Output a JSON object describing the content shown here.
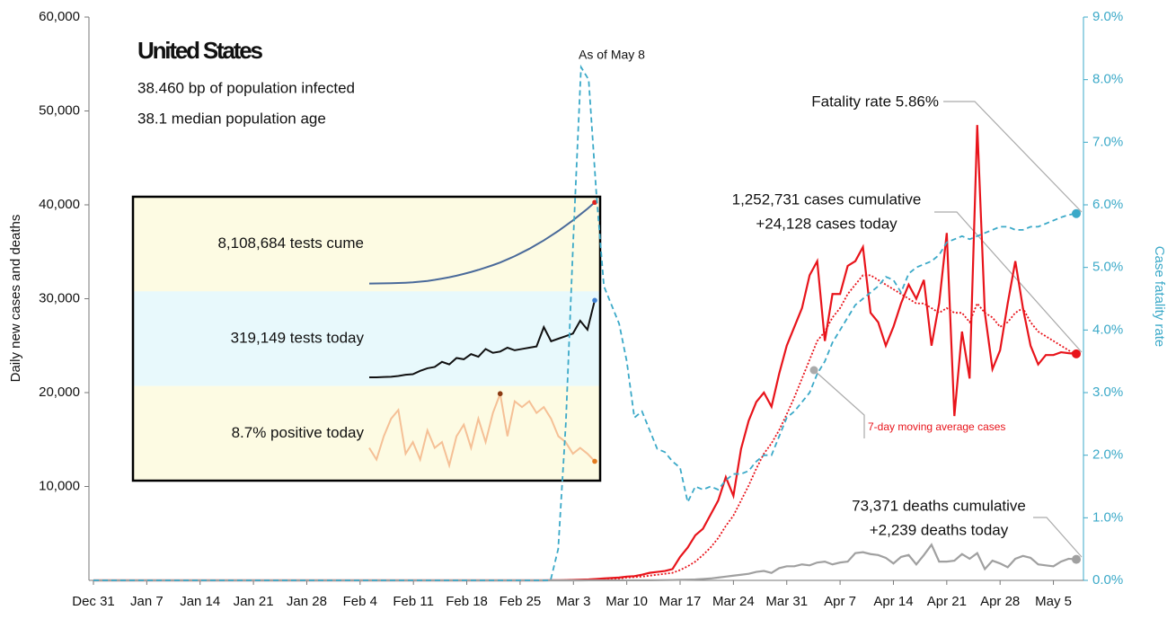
{
  "chart_data": {
    "type": "line",
    "title": "United States",
    "subtitle": [
      "38.460 bp of population infected",
      "38.1 median population age"
    ],
    "y_label": "Daily new cases and deaths",
    "y2_label": "Case fatality rate",
    "annotations": {
      "as_of": "As of May 8",
      "fatality": "Fatality rate 5.86%",
      "cases_cum": "1,252,731 cases cumulative",
      "cases_today": "+24,128 cases today",
      "avg": "7-day moving average cases",
      "deaths_cum": "73,371 deaths cumulative",
      "deaths_today": "+2,239 deaths today"
    },
    "categories": [
      "Dec 31",
      null,
      null,
      null,
      null,
      null,
      null,
      "Jan 7",
      null,
      null,
      null,
      null,
      null,
      null,
      "Jan 14",
      null,
      null,
      null,
      null,
      null,
      null,
      "Jan 21",
      null,
      null,
      null,
      null,
      null,
      null,
      "Jan 28",
      null,
      null,
      null,
      null,
      null,
      null,
      "Feb 4",
      null,
      null,
      null,
      null,
      null,
      null,
      "Feb 11",
      null,
      null,
      null,
      null,
      null,
      null,
      "Feb 18",
      null,
      null,
      null,
      null,
      null,
      null,
      "Feb 25",
      null,
      null,
      null,
      null,
      null,
      null,
      "Mar 3",
      null,
      null,
      null,
      null,
      null,
      null,
      "Mar 10",
      null,
      null,
      null,
      null,
      null,
      null,
      "Mar 17",
      null,
      null,
      null,
      null,
      null,
      null,
      "Mar 24",
      null,
      null,
      null,
      null,
      null,
      null,
      "Mar 31",
      null,
      null,
      null,
      null,
      null,
      null,
      "Apr 7",
      null,
      null,
      null,
      null,
      null,
      null,
      "Apr 14",
      null,
      null,
      null,
      null,
      null,
      null,
      "Apr 21",
      null,
      null,
      null,
      null,
      null,
      null,
      "Apr 28",
      null,
      null,
      null,
      null,
      null,
      null,
      "May 5",
      null,
      null,
      null
    ],
    "ylim": [
      0,
      60000
    ],
    "yticks": [
      {
        "value": 10000,
        "label": "10,000"
      },
      {
        "value": 20000,
        "label": "20,000"
      },
      {
        "value": 30000,
        "label": "30,000"
      },
      {
        "value": 40000,
        "label": "40,000"
      },
      {
        "value": 50000,
        "label": "50,000"
      },
      {
        "value": 60000,
        "label": "60,000"
      }
    ],
    "y2lim": [
      0,
      9
    ],
    "y2ticks": [
      {
        "value": 0,
        "label": "0.0%"
      },
      {
        "value": 1,
        "label": "1.0%"
      },
      {
        "value": 2,
        "label": "2.0%"
      },
      {
        "value": 3,
        "label": "3.0%"
      },
      {
        "value": 4,
        "label": "4.0%"
      },
      {
        "value": 5,
        "label": "5.0%"
      },
      {
        "value": 6,
        "label": "6.0%"
      },
      {
        "value": 7,
        "label": "7.0%"
      },
      {
        "value": 8,
        "label": "8.0%"
      },
      {
        "value": 9,
        "label": "9.0%"
      }
    ],
    "series": [
      {
        "name": "Cases",
        "color": "#e8141b",
        "style": "solid",
        "values": [
          0,
          0,
          0,
          0,
          0,
          0,
          0,
          0,
          0,
          0,
          0,
          0,
          0,
          0,
          0,
          0,
          0,
          0,
          0,
          0,
          0,
          0,
          0,
          0,
          0,
          0,
          0,
          0,
          0,
          0,
          0,
          0,
          0,
          0,
          0,
          0,
          0,
          0,
          0,
          0,
          0,
          0,
          0,
          0,
          0,
          0,
          0,
          0,
          0,
          0,
          0,
          0,
          0,
          0,
          0,
          0,
          0,
          0,
          0,
          0,
          10,
          20,
          30,
          50,
          80,
          100,
          150,
          200,
          250,
          300,
          400,
          450,
          600,
          800,
          900,
          1000,
          1200,
          2500,
          3500,
          4800,
          5500,
          7000,
          8500,
          11000,
          9000,
          14000,
          17000,
          19000,
          20000,
          18500,
          22000,
          25000,
          27000,
          29000,
          32500,
          34000,
          25500,
          30500,
          30500,
          33500,
          34000,
          35500,
          28500,
          27500,
          25000,
          27000,
          29500,
          31500,
          30000,
          32000,
          25000,
          29500,
          37000,
          17500,
          26500,
          21500,
          48500,
          28500,
          22500,
          24500,
          29500,
          34000,
          29000,
          25000,
          23000,
          24000,
          24000,
          24300,
          24200,
          24128
        ]
      },
      {
        "name": "7-day moving average cases",
        "color": "#e8141b",
        "style": "dotted",
        "values": [
          0,
          0,
          0,
          0,
          0,
          0,
          0,
          0,
          0,
          0,
          0,
          0,
          0,
          0,
          0,
          0,
          0,
          0,
          0,
          0,
          0,
          0,
          0,
          0,
          0,
          0,
          0,
          0,
          0,
          0,
          0,
          0,
          0,
          0,
          0,
          0,
          0,
          0,
          0,
          0,
          0,
          0,
          0,
          0,
          0,
          0,
          0,
          0,
          0,
          0,
          0,
          0,
          0,
          0,
          0,
          0,
          0,
          0,
          0,
          0,
          5,
          10,
          20,
          30,
          40,
          60,
          80,
          110,
          150,
          200,
          300,
          350,
          400,
          500,
          600,
          700,
          800,
          1100,
          1500,
          2000,
          2700,
          3500,
          4500,
          5800,
          6900,
          8500,
          10100,
          11900,
          13500,
          14600,
          16000,
          17700,
          19500,
          21500,
          23500,
          25500,
          26500,
          28000,
          29000,
          30500,
          31500,
          32500,
          32500,
          32000,
          31500,
          31000,
          30500,
          30000,
          29500,
          29500,
          29000,
          28500,
          29000,
          28500,
          28500,
          27500,
          29500,
          28500,
          28000,
          27000,
          27500,
          28500,
          29000,
          27500,
          26500,
          26000,
          25500,
          25000,
          24500,
          24000
        ]
      },
      {
        "name": "Deaths",
        "color": "#a0a0a0",
        "style": "solid",
        "values": [
          0,
          0,
          0,
          0,
          0,
          0,
          0,
          0,
          0,
          0,
          0,
          0,
          0,
          0,
          0,
          0,
          0,
          0,
          0,
          0,
          0,
          0,
          0,
          0,
          0,
          0,
          0,
          0,
          0,
          0,
          0,
          0,
          0,
          0,
          0,
          0,
          0,
          0,
          0,
          0,
          0,
          0,
          0,
          0,
          0,
          0,
          0,
          0,
          0,
          0,
          0,
          0,
          0,
          0,
          0,
          0,
          0,
          0,
          0,
          0,
          0,
          0,
          1,
          2,
          3,
          4,
          5,
          6,
          8,
          10,
          5,
          10,
          10,
          15,
          20,
          30,
          40,
          60,
          80,
          100,
          150,
          200,
          300,
          400,
          500,
          600,
          700,
          900,
          1000,
          800,
          1300,
          1500,
          1500,
          1700,
          1600,
          1900,
          2000,
          1700,
          1900,
          2000,
          2900,
          3000,
          2800,
          2700,
          2400,
          1800,
          2500,
          2700,
          1700,
          2700,
          3800,
          2000,
          2000,
          2100,
          2800,
          2300,
          2900,
          1200,
          2100,
          1800,
          1400,
          2300,
          2600,
          2400,
          1700,
          1600,
          1500,
          2000,
          2300,
          2239
        ]
      },
      {
        "name": "Case fatality rate",
        "color": "#3ba9c8",
        "style": "dashed",
        "axis": "y2",
        "values": [
          0,
          0,
          0,
          0,
          0,
          0,
          0,
          0,
          0,
          0,
          0,
          0,
          0,
          0,
          0,
          0,
          0,
          0,
          0,
          0,
          0,
          0,
          0,
          0,
          0,
          0,
          0,
          0,
          0,
          0,
          0,
          0,
          0,
          0,
          0,
          0,
          0,
          0,
          0,
          0,
          0,
          0,
          0,
          0,
          0,
          0,
          0,
          0,
          0,
          0,
          0,
          0,
          0,
          0,
          0,
          0,
          0,
          0,
          0,
          0,
          0,
          0.5,
          2.5,
          5.5,
          8.2,
          8.0,
          6.2,
          4.7,
          4.4,
          4.1,
          3.5,
          2.6,
          2.7,
          2.4,
          2.1,
          2.05,
          1.9,
          1.8,
          1.25,
          1.5,
          1.45,
          1.5,
          1.45,
          1.6,
          1.7,
          1.7,
          1.75,
          1.9,
          2.0,
          2.0,
          2.3,
          2.6,
          2.7,
          2.85,
          3.0,
          3.3,
          3.5,
          3.8,
          4.0,
          4.2,
          4.4,
          4.5,
          4.6,
          4.7,
          4.85,
          4.8,
          4.6,
          4.9,
          5.0,
          5.05,
          5.1,
          5.2,
          5.4,
          5.45,
          5.5,
          5.45,
          5.5,
          5.55,
          5.6,
          5.65,
          5.65,
          5.6,
          5.6,
          5.65,
          5.65,
          5.7,
          5.75,
          5.8,
          5.84,
          5.86
        ]
      }
    ],
    "inset": [
      {
        "name": "8,108,684 tests cume",
        "color": "#4a6a9a",
        "band": "#fdfbe3",
        "marker": "#e0201c",
        "ylim": [
          0,
          8300000
        ],
        "values": [
          400000,
          410000,
          420000,
          430000,
          450000,
          480000,
          520000,
          580000,
          650000,
          750000,
          870000,
          1000000,
          1150000,
          1320000,
          1500000,
          1700000,
          1920000,
          2150000,
          2400000,
          2700000,
          3000000,
          3350000,
          3700000,
          4100000,
          4500000,
          4950000,
          5400000,
          5900000,
          6400000,
          6950000,
          7500000,
          8108684
        ]
      },
      {
        "name": "319,149 tests today",
        "color": "#111111",
        "band": "#e8f9fc",
        "marker": "#3d7fd1",
        "ylim": [
          0,
          340000
        ],
        "values": [
          20000,
          20000,
          21000,
          22000,
          25000,
          30000,
          32000,
          45000,
          55000,
          60000,
          80000,
          70000,
          95000,
          90000,
          110000,
          100000,
          130000,
          115000,
          120000,
          135000,
          125000,
          130000,
          135000,
          140000,
          215000,
          160000,
          170000,
          180000,
          190000,
          240000,
          205000,
          319149
        ]
      },
      {
        "name": "8.7% positive today",
        "color": "#f5c096",
        "band": "#fdfbe3",
        "marker": "#e27a1e",
        "peak_marker": "#8b3a12",
        "ylim": [
          6,
          21
        ],
        "values": [
          11,
          9,
          13,
          16,
          17.5,
          10,
          12,
          9,
          14,
          11,
          12,
          8,
          13,
          15,
          11,
          16,
          12,
          17,
          20.3,
          13,
          19,
          18,
          19,
          17,
          18,
          16,
          13,
          12,
          10,
          11,
          10,
          8.7
        ]
      }
    ]
  }
}
